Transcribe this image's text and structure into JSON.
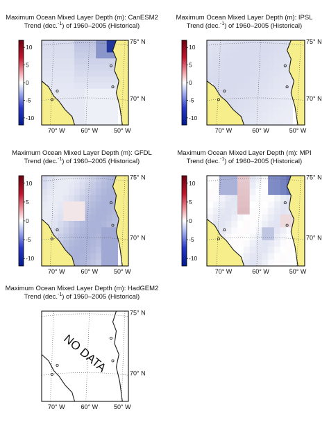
{
  "figure": {
    "no_data_text": "NO DATA",
    "colors": {
      "land": "#f5ee8a",
      "positive_max": "#6b0010",
      "negative_max": "#001a8c",
      "zero": "#ffffff",
      "coast": "#1a1a1a",
      "grid": "#555555"
    }
  },
  "chart_data": [
    {
      "type": "heatmap",
      "title_line1": "Maximum Ocean Mixed Layer Depth (m): CanESM2",
      "title_line2_prefix": "Trend (dec.",
      "title_line2_sup": "-1",
      "title_line2_suffix": ") of 1960–2005 (Historical)",
      "model": "CanESM2",
      "colorbar": {
        "ticks": [
          10,
          5,
          0,
          -5,
          -10
        ],
        "tick_labels": [
          "10",
          "5",
          "0",
          "-5",
          "-10"
        ],
        "range": [
          -12,
          12
        ]
      },
      "x_tick_labels": [
        "70° W",
        "60° W",
        "50° W"
      ],
      "y_tick_labels": [
        "75° N",
        "70° N"
      ],
      "xlim_deg_w": [
        75,
        50
      ],
      "ylim_deg_n": [
        66.3,
        75
      ],
      "grid": true,
      "has_data": true
    },
    {
      "type": "heatmap",
      "title_line1": "Maximum Ocean Mixed Layer Depth (m): IPSL",
      "title_line2_prefix": "Trend (dec.",
      "title_line2_sup": "-1",
      "title_line2_suffix": ") of 1960–2005 (Historical)",
      "model": "IPSL",
      "colorbar": {
        "ticks": [
          10,
          5,
          0,
          -5,
          -10
        ],
        "tick_labels": [
          "10",
          "5",
          "0",
          "-5",
          "-10"
        ],
        "range": [
          -12,
          12
        ]
      },
      "x_tick_labels": [
        "70° W",
        "60° W",
        "50° W"
      ],
      "y_tick_labels": [
        "75° N",
        "70° N"
      ],
      "xlim_deg_w": [
        75,
        50
      ],
      "ylim_deg_n": [
        66.3,
        75
      ],
      "grid": true,
      "has_data": true
    },
    {
      "type": "heatmap",
      "title_line1": "Maximum Ocean Mixed Layer Depth (m): GFDL",
      "title_line2_prefix": "Trend (dec.",
      "title_line2_sup": "-1",
      "title_line2_suffix": ") of 1960–2005 (Historical)",
      "model": "GFDL",
      "colorbar": {
        "ticks": [
          10,
          5,
          0,
          -5,
          -10
        ],
        "tick_labels": [
          "10",
          "5",
          "0",
          "-5",
          "-10"
        ],
        "range": [
          -12,
          12
        ]
      },
      "x_tick_labels": [
        "70° W",
        "60° W",
        "50° W"
      ],
      "y_tick_labels": [
        "75° N",
        "70° N"
      ],
      "xlim_deg_w": [
        75,
        50
      ],
      "ylim_deg_n": [
        66.3,
        75
      ],
      "grid": true,
      "has_data": true
    },
    {
      "type": "heatmap",
      "title_line1": "Maximum Ocean Mixed Layer Depth (m): MPI",
      "title_line2_prefix": "Trend (dec.",
      "title_line2_sup": "-1",
      "title_line2_suffix": ") of 1960–2005 (Historical)",
      "model": "MPI",
      "colorbar": {
        "ticks": [
          10,
          5,
          0,
          -5,
          -10
        ],
        "tick_labels": [
          "10",
          "5",
          "0",
          "-5",
          "-10"
        ],
        "range": [
          -12,
          12
        ]
      },
      "x_tick_labels": [
        "70° W",
        "60° W",
        "50° W"
      ],
      "y_tick_labels": [
        "75° N",
        "70° N"
      ],
      "xlim_deg_w": [
        75,
        50
      ],
      "ylim_deg_n": [
        66.3,
        75
      ],
      "grid": true,
      "has_data": true
    },
    {
      "type": "heatmap",
      "title_line1": "Maximum Ocean Mixed Layer Depth (m): HadGEM2",
      "title_line2_prefix": "Trend (dec.",
      "title_line2_sup": "-1",
      "title_line2_suffix": ") of 1960–2005 (Historical)",
      "model": "HadGEM2",
      "x_tick_labels": [
        "70° W",
        "60° W",
        "50° W"
      ],
      "y_tick_labels": [
        "75° N",
        "70° N"
      ],
      "xlim_deg_w": [
        75,
        50
      ],
      "ylim_deg_n": [
        66.3,
        75
      ],
      "grid": true,
      "has_data": false
    }
  ]
}
